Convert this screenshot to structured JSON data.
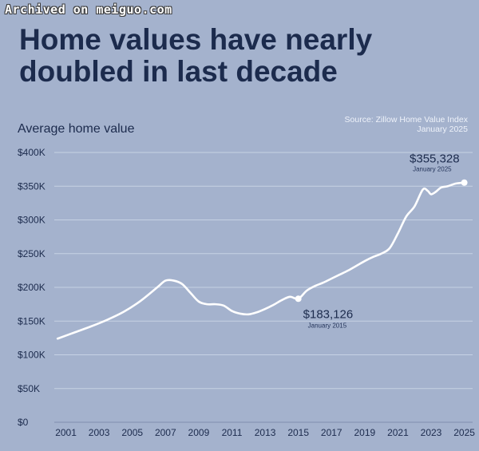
{
  "watermark": "Archived on meiguo.com",
  "title": "Home values have nearly doubled in last decade",
  "source_line1": "Source: Zillow Home Value Index",
  "source_line2": "January 2025",
  "colors": {
    "background": "#a4b2cd",
    "text": "#1c2b4d",
    "line": "#ffffff",
    "grid": "#c6d1e4"
  },
  "chart_data": {
    "type": "line",
    "ylabel": "Average home value",
    "ylim": [
      0,
      400000
    ],
    "yticks": [
      0,
      50000,
      100000,
      150000,
      200000,
      250000,
      300000,
      350000,
      400000
    ],
    "ytick_labels": [
      "$0",
      "$50K",
      "$100K",
      "$150K",
      "$200K",
      "$250K",
      "$300K",
      "$350K",
      "$400K"
    ],
    "xlim": [
      2000.3,
      2025.5
    ],
    "xticks": [
      2001,
      2003,
      2005,
      2007,
      2009,
      2011,
      2013,
      2015,
      2017,
      2019,
      2021,
      2023,
      2025
    ],
    "xtick_labels": [
      "2001",
      "2003",
      "2005",
      "2007",
      "2009",
      "2011",
      "2013",
      "2015",
      "2017",
      "2019",
      "2021",
      "2023",
      "2025"
    ],
    "grid": true,
    "series": [
      {
        "x": [
          2000.5,
          2001.5,
          2002.5,
          2003.5,
          2004.5,
          2005.5,
          2006.5,
          2007.0,
          2007.5,
          2008.0,
          2008.5,
          2009.0,
          2009.5,
          2010.0,
          2010.5,
          2011.0,
          2011.5,
          2012.0,
          2012.5,
          2013.0,
          2013.5,
          2014.0,
          2014.5,
          2015.0,
          2015.5,
          2016.0,
          2016.5,
          2017.0,
          2017.5,
          2018.0,
          2018.5,
          2019.0,
          2019.5,
          2020.0,
          2020.5,
          2021.0,
          2021.5,
          2022.0,
          2022.5,
          2022.8,
          2023.0,
          2023.3,
          2023.6,
          2024.0,
          2024.5,
          2025.0
        ],
        "y": [
          124000,
          133000,
          142000,
          152000,
          164000,
          180000,
          200000,
          210000,
          210000,
          205000,
          192000,
          179000,
          175000,
          175000,
          173000,
          165000,
          161000,
          160000,
          163000,
          168000,
          174000,
          181000,
          186000,
          183126,
          195000,
          202000,
          207000,
          213000,
          219000,
          225000,
          232000,
          239000,
          245000,
          250000,
          258000,
          280000,
          305000,
          320000,
          345000,
          343000,
          338000,
          342000,
          348000,
          350000,
          354000,
          355328
        ]
      }
    ],
    "annotations": [
      {
        "x": 2015,
        "y": 183126,
        "label": "$183,126",
        "sublabel": "January 2015"
      },
      {
        "x": 2025,
        "y": 355328,
        "label": "$355,328",
        "sublabel": "January 2025"
      }
    ]
  }
}
